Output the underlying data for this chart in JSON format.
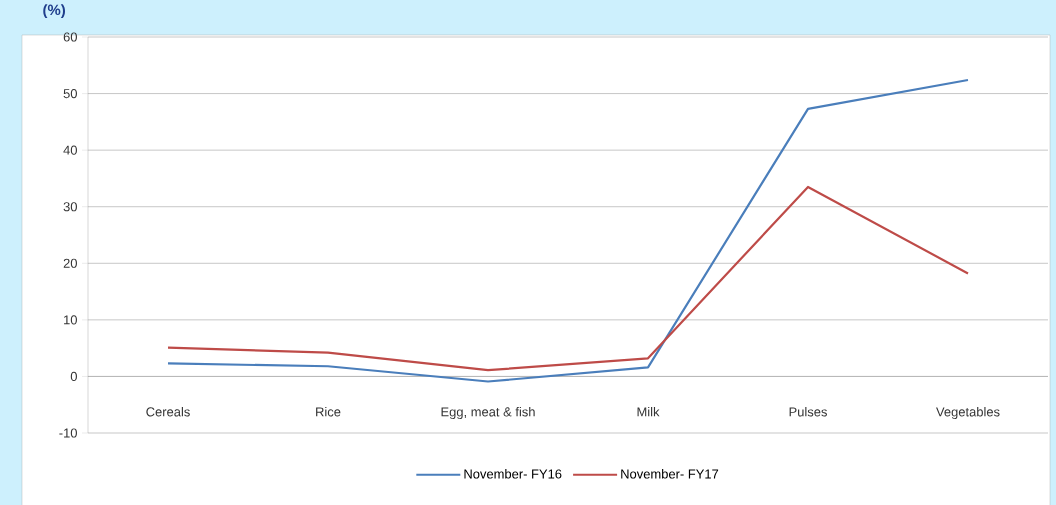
{
  "chart_data": {
    "type": "line",
    "ylabel": "(%)",
    "categories": [
      "Cereals",
      "Rice",
      "Egg, meat & fish",
      "Milk",
      "Pulses",
      "Vegetables"
    ],
    "series": [
      {
        "name": "November- FY16",
        "color": "#4a7ebb",
        "values": [
          2.3,
          1.8,
          -0.9,
          1.6,
          47.3,
          52.4
        ]
      },
      {
        "name": "November- FY17",
        "color": "#be4b48",
        "values": [
          5.1,
          4.2,
          1.1,
          3.2,
          33.5,
          18.2
        ]
      }
    ],
    "ylim": [
      -10,
      60
    ],
    "yticks": [
      -10,
      0,
      10,
      20,
      30,
      40,
      50,
      60
    ],
    "grid": "y",
    "legend": "bottom",
    "marker": "none",
    "line_style": "solid"
  }
}
